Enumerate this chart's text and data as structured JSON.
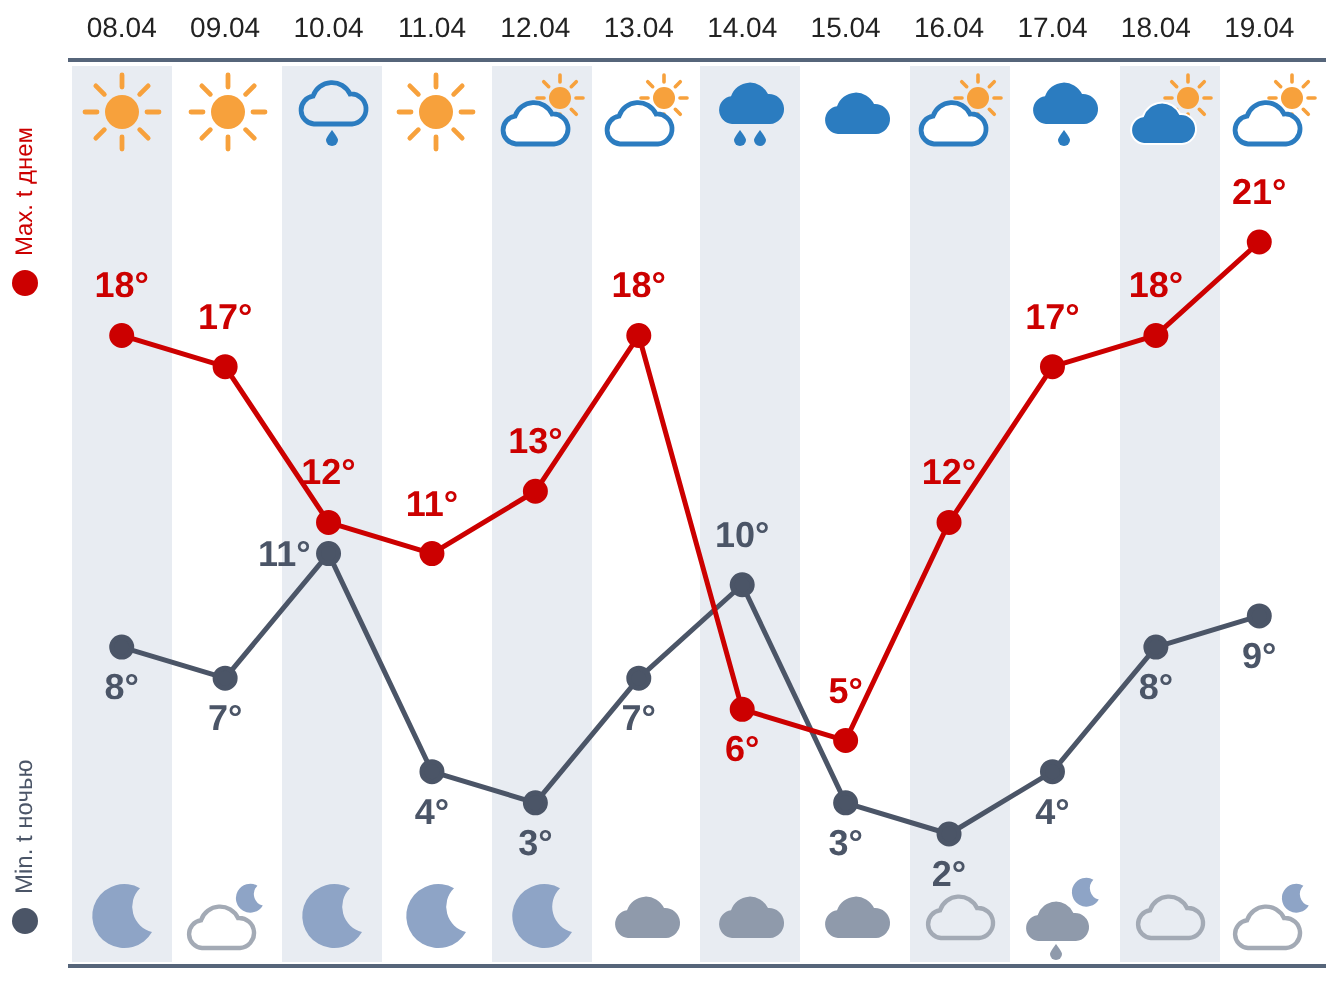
{
  "chart_data": {
    "type": "line",
    "categories": [
      "08.04",
      "09.04",
      "10.04",
      "11.04",
      "12.04",
      "13.04",
      "14.04",
      "15.04",
      "16.04",
      "17.04",
      "18.04",
      "19.04"
    ],
    "series": [
      {
        "name": "Max. t днем",
        "color": "#cc0000",
        "values": [
          18,
          17,
          12,
          11,
          13,
          18,
          6,
          5,
          12,
          17,
          18,
          21
        ],
        "value_labels": [
          "18°",
          "17°",
          "12°",
          "11°",
          "13°",
          "18°",
          "6°",
          "5°",
          "12°",
          "17°",
          "18°",
          "21°"
        ]
      },
      {
        "name": "Min. t ночью",
        "color": "#4b5567",
        "values": [
          8,
          7,
          11,
          4,
          3,
          7,
          10,
          3,
          2,
          4,
          8,
          9
        ],
        "value_labels": [
          "8°",
          "7°",
          "11°",
          "4°",
          "3°",
          "7°",
          "10°",
          "3°",
          "2°",
          "4°",
          "8°",
          "9°"
        ]
      }
    ],
    "legend": "left",
    "marker": "circle",
    "tick_labels": "x"
  }
}
